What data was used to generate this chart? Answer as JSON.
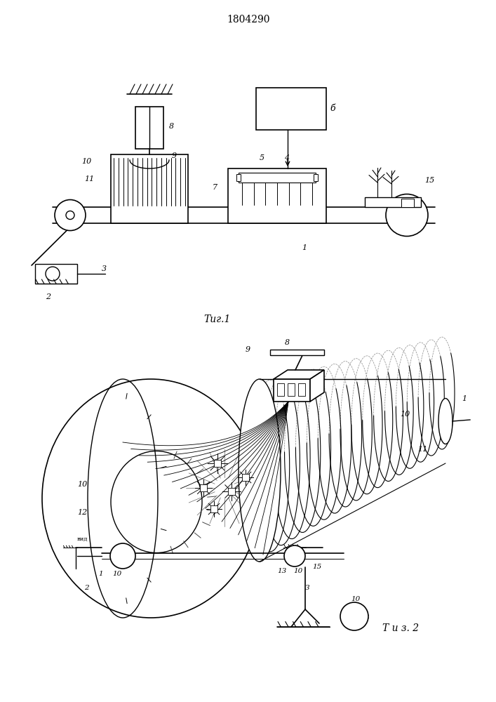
{
  "title": "1804290",
  "title_fontsize": 10,
  "fig1_label": "Τиг.1",
  "fig2_label": "Τ и з. 2",
  "background_color": "#ffffff",
  "line_color": "#000000",
  "line_width": 1.0
}
